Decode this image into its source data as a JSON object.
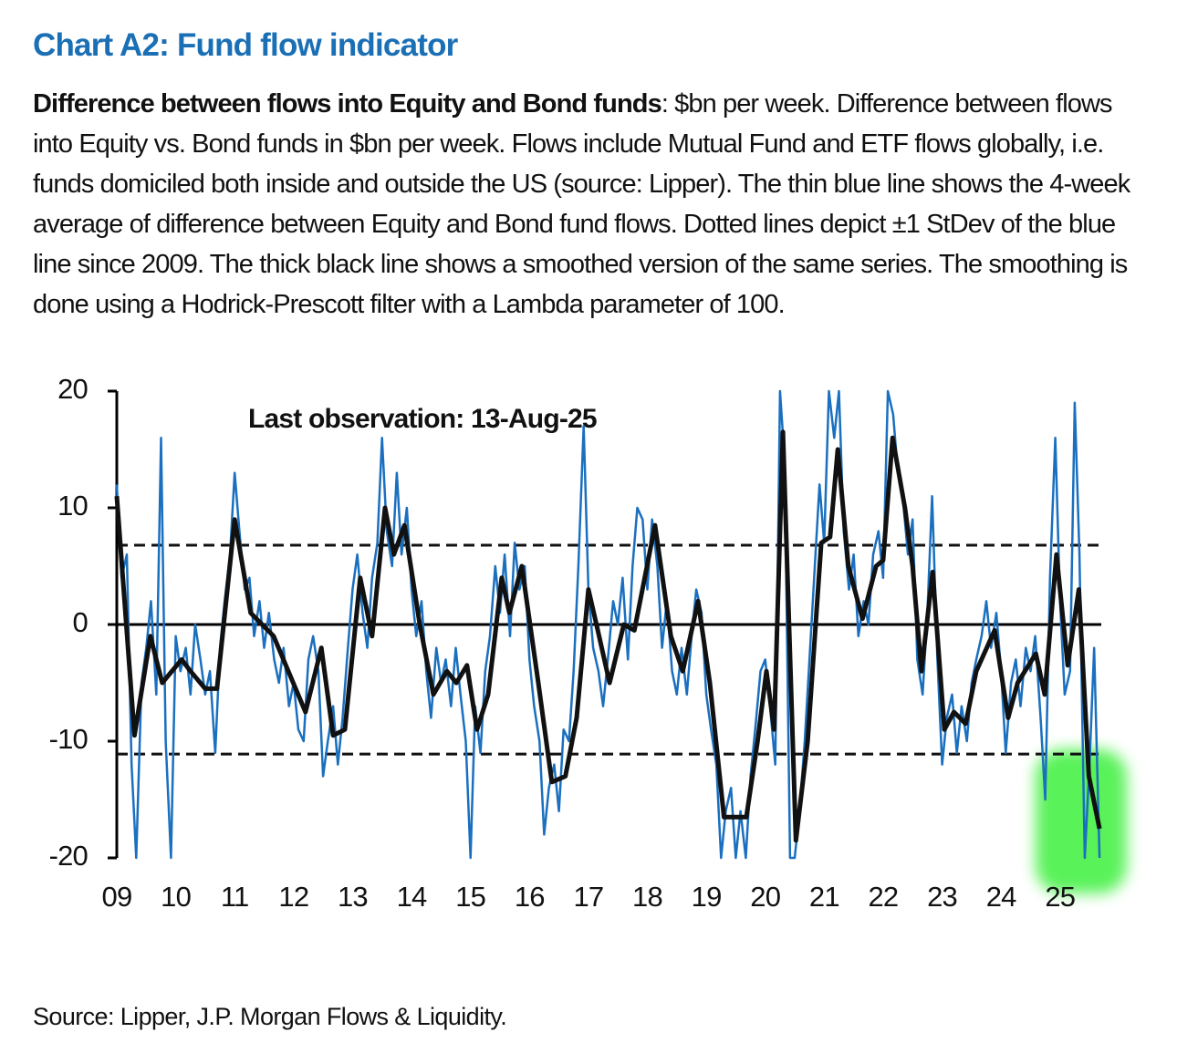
{
  "chart_data": {
    "type": "line",
    "title": "Chart A2: Fund flow indicator",
    "subtitle_bold": "Difference between flows into Equity and Bond funds",
    "subtitle": ": $bn per week. Difference between flows into Equity vs. Bond funds in $bn per week. Flows include Mutual Fund and ETF flows globally, i.e. funds domiciled both inside and outside the US (source: Lipper). The thin blue line shows the 4-week average of difference between Equity and Bond fund flows. Dotted lines depict ±1 StDev of the blue line since 2009. The thick black line shows a smoothed version of the same series. The smoothing is done using a Hodrick-Prescott filter with a Lambda parameter of 100.",
    "annotation": "Last observation: 13-Aug-25",
    "source": "Source: Lipper, J.P. Morgan Flows & Liquidity.",
    "xlim": [
      2009,
      2025.7
    ],
    "xticks": [
      {
        "value": 2009,
        "label": "09"
      },
      {
        "value": 2010,
        "label": "10"
      },
      {
        "value": 2011,
        "label": "11"
      },
      {
        "value": 2012,
        "label": "12"
      },
      {
        "value": 2013,
        "label": "13"
      },
      {
        "value": 2014,
        "label": "14"
      },
      {
        "value": 2015,
        "label": "15"
      },
      {
        "value": 2016,
        "label": "16"
      },
      {
        "value": 2017,
        "label": "17"
      },
      {
        "value": 2018,
        "label": "18"
      },
      {
        "value": 2019,
        "label": "19"
      },
      {
        "value": 2020,
        "label": "20"
      },
      {
        "value": 2021,
        "label": "21"
      },
      {
        "value": 2022,
        "label": "22"
      },
      {
        "value": 2023,
        "label": "23"
      },
      {
        "value": 2024,
        "label": "24"
      },
      {
        "value": 2025,
        "label": "25"
      }
    ],
    "ylim": [
      -20,
      20
    ],
    "yticks": [
      20,
      10,
      0,
      -10,
      -20
    ],
    "reference_lines": [
      6.8,
      -11.1
    ],
    "series": [
      {
        "color": "#1a6fbf",
        "width": 2.5,
        "x": [
          2009.0,
          2009.08,
          2009.17,
          2009.25,
          2009.33,
          2009.42,
          2009.5,
          2009.58,
          2009.67,
          2009.75,
          2009.83,
          2009.92,
          2010.0,
          2010.08,
          2010.17,
          2010.25,
          2010.33,
          2010.42,
          2010.5,
          2010.58,
          2010.67,
          2010.75,
          2010.83,
          2010.92,
          2011.0,
          2011.08,
          2011.17,
          2011.25,
          2011.33,
          2011.42,
          2011.5,
          2011.58,
          2011.67,
          2011.75,
          2011.83,
          2011.92,
          2012.0,
          2012.08,
          2012.17,
          2012.25,
          2012.33,
          2012.42,
          2012.5,
          2012.58,
          2012.67,
          2012.75,
          2012.83,
          2012.92,
          2013.0,
          2013.08,
          2013.17,
          2013.25,
          2013.33,
          2013.42,
          2013.5,
          2013.58,
          2013.67,
          2013.75,
          2013.83,
          2013.92,
          2014.0,
          2014.08,
          2014.17,
          2014.25,
          2014.33,
          2014.42,
          2014.5,
          2014.58,
          2014.67,
          2014.75,
          2014.83,
          2014.92,
          2015.0,
          2015.08,
          2015.17,
          2015.25,
          2015.33,
          2015.42,
          2015.5,
          2015.58,
          2015.67,
          2015.75,
          2015.83,
          2015.92,
          2016.0,
          2016.08,
          2016.17,
          2016.25,
          2016.33,
          2016.42,
          2016.5,
          2016.58,
          2016.67,
          2016.75,
          2016.83,
          2016.92,
          2017.0,
          2017.08,
          2017.17,
          2017.25,
          2017.33,
          2017.42,
          2017.5,
          2017.58,
          2017.67,
          2017.75,
          2017.83,
          2017.92,
          2018.0,
          2018.08,
          2018.17,
          2018.25,
          2018.33,
          2018.42,
          2018.5,
          2018.58,
          2018.67,
          2018.75,
          2018.83,
          2018.92,
          2019.0,
          2019.08,
          2019.17,
          2019.25,
          2019.33,
          2019.42,
          2019.5,
          2019.58,
          2019.67,
          2019.75,
          2019.83,
          2019.92,
          2020.0,
          2020.08,
          2020.17,
          2020.25,
          2020.33,
          2020.42,
          2020.5,
          2020.58,
          2020.67,
          2020.75,
          2020.83,
          2020.92,
          2021.0,
          2021.08,
          2021.17,
          2021.25,
          2021.33,
          2021.42,
          2021.5,
          2021.58,
          2021.67,
          2021.75,
          2021.83,
          2021.92,
          2022.0,
          2022.08,
          2022.17,
          2022.25,
          2022.33,
          2022.42,
          2022.5,
          2022.58,
          2022.67,
          2022.75,
          2022.83,
          2022.92,
          2023.0,
          2023.08,
          2023.17,
          2023.25,
          2023.33,
          2023.42,
          2023.5,
          2023.58,
          2023.67,
          2023.75,
          2023.83,
          2023.92,
          2024.0,
          2024.08,
          2024.17,
          2024.25,
          2024.33,
          2024.42,
          2024.5,
          2024.58,
          2024.67,
          2024.75,
          2024.83,
          2024.92,
          2025.0,
          2025.08,
          2025.17,
          2025.25,
          2025.33,
          2025.42,
          2025.5,
          2025.58,
          2025.67
        ],
        "values": [
          12,
          4,
          6,
          -12,
          -20,
          -5,
          -2,
          2,
          -6,
          16,
          -10,
          -20,
          -1,
          -4,
          -2,
          -6,
          0,
          -3,
          -6,
          -4,
          -11,
          -2,
          2,
          6,
          13,
          8,
          3,
          4,
          -1,
          2,
          -2,
          1,
          -3,
          -5,
          -2,
          -7,
          -5,
          -9,
          -10,
          -3,
          -1,
          -4,
          -13,
          -10,
          -7,
          -12,
          -8,
          -2,
          3,
          6,
          1,
          -2,
          4,
          7,
          16,
          8,
          5,
          13,
          6,
          10,
          3,
          -1,
          2,
          -4,
          -8,
          -2,
          -5,
          -3,
          -7,
          -2,
          -6,
          -10,
          -20,
          -7,
          -11,
          -4,
          -1,
          5,
          1,
          6,
          -1,
          7,
          3,
          5,
          -3,
          -7,
          -10,
          -18,
          -14,
          -12,
          -16,
          -9,
          -10,
          -4,
          5,
          17,
          3,
          -2,
          -4,
          -7,
          -3,
          2,
          0,
          4,
          -3,
          5,
          10,
          9,
          3,
          9,
          5,
          -2,
          2,
          -4,
          -6,
          -2,
          -6,
          -1,
          3,
          1,
          -6,
          -9,
          -12,
          -20,
          -16,
          -14,
          -20,
          -16,
          -20,
          -13,
          -9,
          -4,
          -3,
          -7,
          -12,
          20,
          14,
          -20,
          -20,
          -16,
          -10,
          -3,
          4,
          12,
          7,
          20,
          16,
          20,
          8,
          3,
          6,
          -1,
          2,
          0,
          6,
          8,
          4,
          20,
          18,
          13,
          11,
          6,
          9,
          -3,
          -6,
          1,
          11,
          -3,
          -12,
          -8,
          -6,
          -11,
          -7,
          -10,
          -5,
          -3,
          -1,
          2,
          -2,
          1,
          -4,
          -11,
          -5,
          -3,
          -7,
          -2,
          -4,
          -1,
          -8,
          -15,
          4,
          16,
          2,
          -6,
          -4,
          19,
          6,
          -20,
          -12,
          -2,
          -20
        ]
      },
      {
        "color": "#111111",
        "width": 5,
        "x": [
          2009.0,
          2009.3,
          2009.57,
          2009.77,
          2010.1,
          2010.25,
          2010.5,
          2010.7,
          2011.0,
          2011.27,
          2011.66,
          2012.2,
          2012.47,
          2012.67,
          2012.87,
          2013.13,
          2013.33,
          2013.55,
          2013.7,
          2013.88,
          2014.14,
          2014.37,
          2014.6,
          2014.76,
          2014.94,
          2015.11,
          2015.3,
          2015.53,
          2015.66,
          2015.87,
          2016.15,
          2016.38,
          2016.61,
          2016.8,
          2017.0,
          2017.16,
          2017.36,
          2017.6,
          2017.78,
          2018.13,
          2018.4,
          2018.6,
          2018.86,
          2019.06,
          2019.3,
          2019.48,
          2019.68,
          2019.87,
          2020.02,
          2020.15,
          2020.3,
          2020.52,
          2020.72,
          2020.95,
          2021.1,
          2021.23,
          2021.41,
          2021.65,
          2021.88,
          2022.0,
          2022.16,
          2022.37,
          2022.5,
          2022.65,
          2022.84,
          2023.04,
          2023.2,
          2023.4,
          2023.58,
          2023.89,
          2024.12,
          2024.28,
          2024.59,
          2024.74,
          2024.94,
          2025.13,
          2025.32,
          2025.49,
          2025.67
        ],
        "values": [
          11,
          -9.5,
          -1,
          -5,
          -3,
          -4,
          -5.5,
          -5.5,
          9,
          1,
          -1,
          -7.5,
          -2,
          -9.5,
          -9,
          4,
          -1,
          10,
          6,
          8.5,
          0,
          -6,
          -4,
          -5,
          -3.5,
          -9,
          -6,
          4,
          1,
          5,
          -5,
          -13.5,
          -13,
          -8,
          3,
          -0.5,
          -5,
          0,
          -0.5,
          8.5,
          -1,
          -4,
          2,
          -5,
          -16.5,
          -16.5,
          -16.5,
          -10,
          -4,
          -9,
          16.5,
          -18.5,
          -10,
          7,
          7.5,
          15,
          5,
          0.5,
          5,
          5.5,
          16,
          10,
          5,
          -4,
          4.5,
          -9,
          -7.5,
          -8.5,
          -4,
          -0.5,
          -8,
          -5,
          -2.5,
          -6,
          6,
          -3.5,
          3,
          -13,
          -17.5
        ]
      }
    ]
  }
}
